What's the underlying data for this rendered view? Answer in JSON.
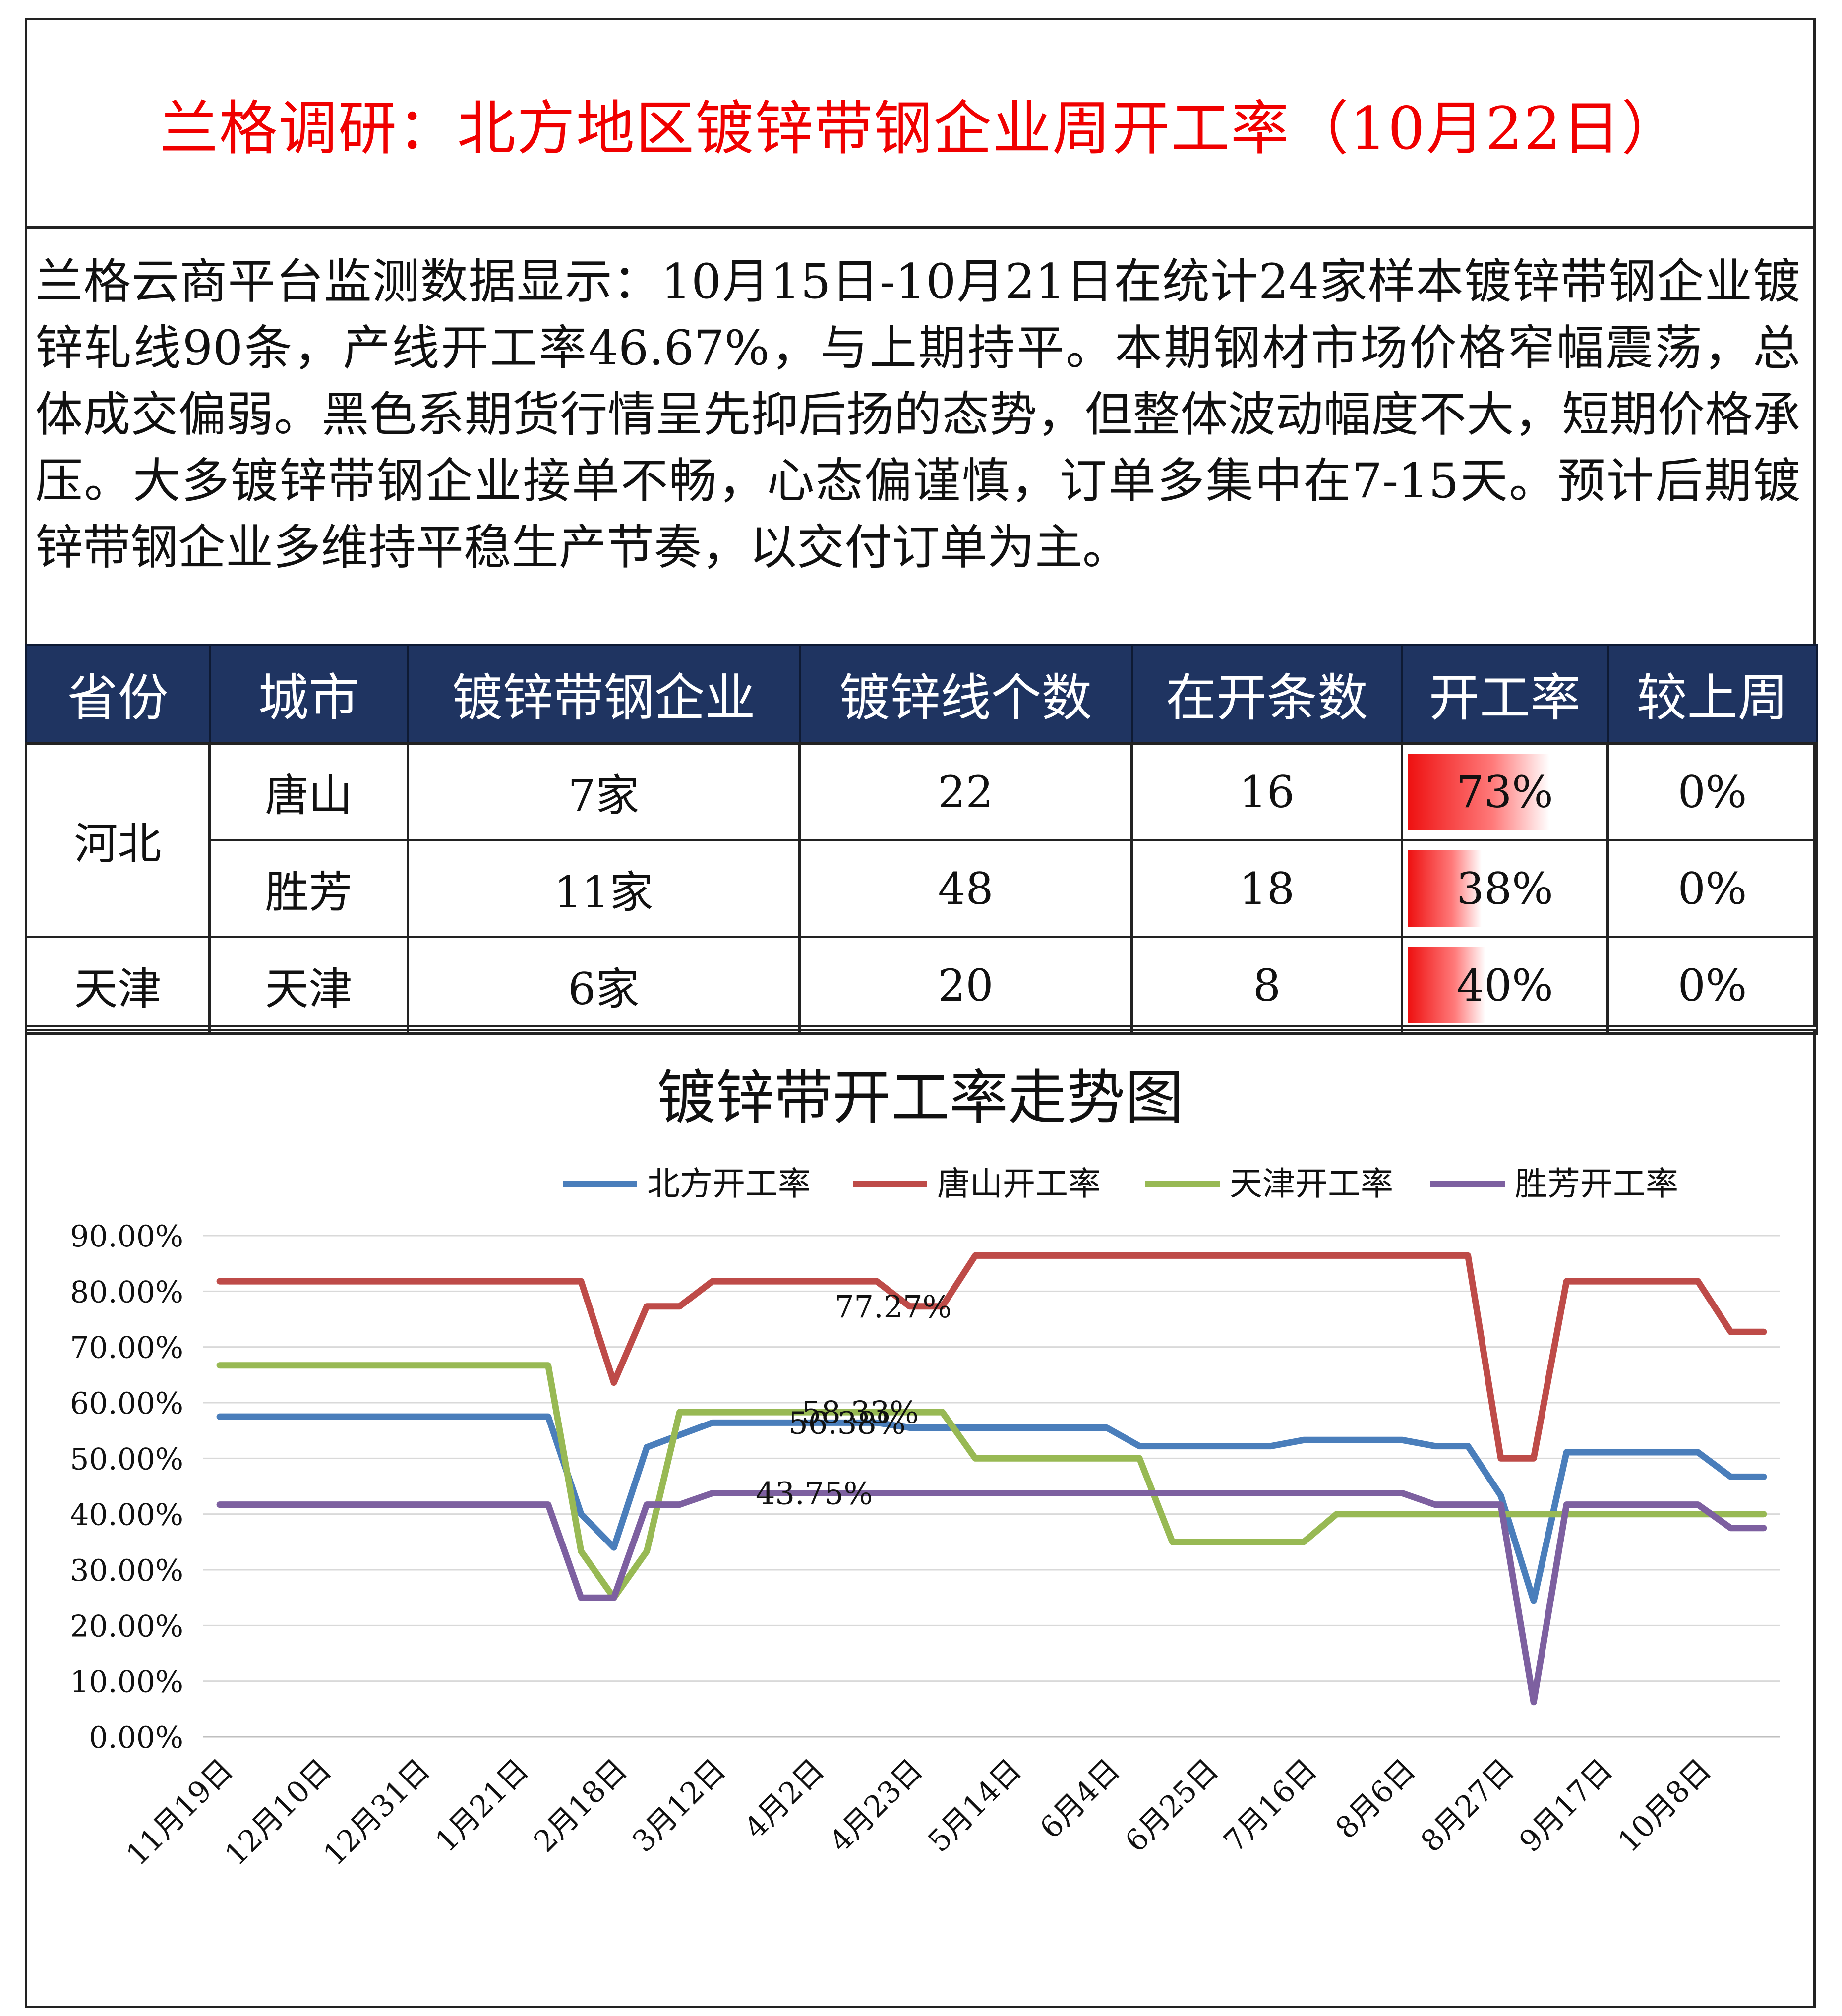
{
  "title": "兰格调研：北方地区镀锌带钢企业周开工率（10月22日）",
  "summary": "兰格云商平台监测数据显示：10月15日-10月21日在统计24家样本镀锌带钢企业镀锌轧线90条，产线开工率46.67%，与上期持平。本期钢材市场价格窄幅震荡，总体成交偏弱。黑色系期货行情呈先抑后扬的态势，但整体波动幅度不大，短期价格承压。大多镀锌带钢企业接单不畅，心态偏谨慎，订单多集中在7-15天。预计后期镀锌带钢企业多维持平稳生产节奏，以交付订单为主。",
  "table": {
    "headers": [
      "省份",
      "城市",
      "镀锌带钢企业",
      "镀锌线个数",
      "在开条数",
      "开工率",
      "较上周"
    ],
    "groups": [
      {
        "province": "河北",
        "rows": [
          {
            "city": "唐山",
            "companies": "7家",
            "lines": "22",
            "running": "16",
            "rate": "73%",
            "rate_value": 0.73,
            "change": "0%"
          },
          {
            "city": "胜芳",
            "companies": "11家",
            "lines": "48",
            "running": "18",
            "rate": "38%",
            "rate_value": 0.38,
            "change": "0%"
          }
        ]
      },
      {
        "province": "天津",
        "rows": [
          {
            "city": "天津",
            "companies": "6家",
            "lines": "20",
            "running": "8",
            "rate": "40%",
            "rate_value": 0.4,
            "change": "0%"
          }
        ]
      }
    ],
    "bar_color": "#ee1111",
    "header_color": "#1f3461"
  },
  "chart_data": {
    "type": "line",
    "title": "镀锌带开工率走势图",
    "legend_position": "top",
    "grid": true,
    "ylim": [
      0,
      90
    ],
    "y_ticks": [
      "0.00%",
      "10.00%",
      "20.00%",
      "30.00%",
      "40.00%",
      "50.00%",
      "60.00%",
      "70.00%",
      "80.00%",
      "90.00%"
    ],
    "x_tick_labels": [
      "11月19日",
      "12月10日",
      "12月31日",
      "1月21日",
      "2月18日",
      "3月12日",
      "4月2日",
      "4月23日",
      "5月14日",
      "6月4日",
      "6月25日",
      "7月16日",
      "8月6日",
      "8月27日",
      "9月17日",
      "10月8日"
    ],
    "x_tick_every": 3,
    "n_points": 48,
    "series": [
      {
        "name": "北方开工率",
        "color": "#4a7ebb",
        "values": [
          57.5,
          57.5,
          57.5,
          57.5,
          57.5,
          57.5,
          57.5,
          57.5,
          57.5,
          57.5,
          57.5,
          40.0,
          34.0,
          52.0,
          54.2,
          56.4,
          56.4,
          56.4,
          56.4,
          56.4,
          56.4,
          55.5,
          55.5,
          55.5,
          55.5,
          55.5,
          55.5,
          55.5,
          52.2,
          52.2,
          52.2,
          52.2,
          52.2,
          53.3,
          53.3,
          53.3,
          53.3,
          52.2,
          52.2,
          43.3,
          24.4,
          51.1,
          51.1,
          51.1,
          51.1,
          51.1,
          46.7,
          46.7
        ]
      },
      {
        "name": "唐山开工率",
        "color": "#be4b48",
        "values": [
          81.8,
          81.8,
          81.8,
          81.8,
          81.8,
          81.8,
          81.8,
          81.8,
          81.8,
          81.8,
          81.8,
          81.8,
          63.6,
          77.3,
          77.3,
          81.8,
          81.8,
          81.8,
          81.8,
          81.8,
          81.8,
          77.3,
          77.3,
          86.4,
          86.4,
          86.4,
          86.4,
          86.4,
          86.4,
          86.4,
          86.4,
          86.4,
          86.4,
          86.4,
          86.4,
          86.4,
          86.4,
          86.4,
          86.4,
          50.0,
          50.0,
          81.8,
          81.8,
          81.8,
          81.8,
          81.8,
          72.7,
          72.7
        ]
      },
      {
        "name": "天津开工率",
        "color": "#98b954",
        "values": [
          66.7,
          66.7,
          66.7,
          66.7,
          66.7,
          66.7,
          66.7,
          66.7,
          66.7,
          66.7,
          66.7,
          33.3,
          25.0,
          33.3,
          58.3,
          58.3,
          58.3,
          58.3,
          58.3,
          58.3,
          58.3,
          58.3,
          58.3,
          50.0,
          50.0,
          50.0,
          50.0,
          50.0,
          50.0,
          35.0,
          35.0,
          35.0,
          35.0,
          35.0,
          40.0,
          40.0,
          40.0,
          40.0,
          40.0,
          40.0,
          40.0,
          40.0,
          40.0,
          40.0,
          40.0,
          40.0,
          40.0,
          40.0
        ]
      },
      {
        "name": "胜芳开工率",
        "color": "#7d60a0",
        "values": [
          41.7,
          41.7,
          41.7,
          41.7,
          41.7,
          41.7,
          41.7,
          41.7,
          41.7,
          41.7,
          41.7,
          25.0,
          25.0,
          41.7,
          41.7,
          43.75,
          43.75,
          43.75,
          43.75,
          43.75,
          43.75,
          43.75,
          43.75,
          43.75,
          43.75,
          43.75,
          43.75,
          43.75,
          43.75,
          43.75,
          43.75,
          43.75,
          43.75,
          43.75,
          43.75,
          43.75,
          43.75,
          41.7,
          41.7,
          41.7,
          6.25,
          41.7,
          41.7,
          41.7,
          41.7,
          41.7,
          37.5,
          37.5
        ]
      }
    ],
    "annotations": [
      {
        "text": "77.27%",
        "x_index": 20.5,
        "y": 77.27
      },
      {
        "text": "58.33%",
        "x_index": 19.5,
        "y": 58.33
      },
      {
        "text": "56.38%",
        "x_index": 19.1,
        "y": 56.38
      },
      {
        "text": "43.75%",
        "x_index": 18.1,
        "y": 43.75
      }
    ]
  }
}
